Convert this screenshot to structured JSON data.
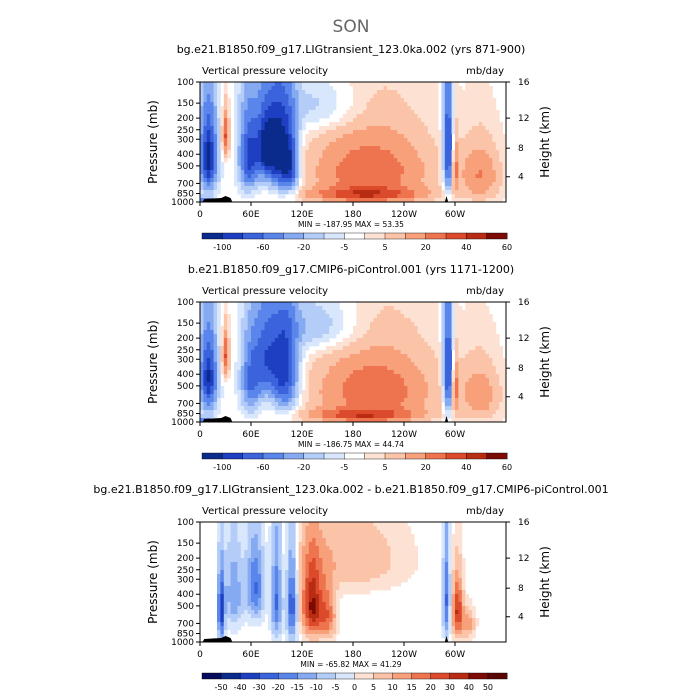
{
  "figure": {
    "title": "SON"
  },
  "common": {
    "left_text": "Vertical pressure velocity",
    "right_text": "mb/day",
    "ylabel_left": "Pressure (mb)",
    "ylabel_right": "Height (km)",
    "pressure_ticks": [
      "100",
      "150",
      "200",
      "250",
      "300",
      "400",
      "500",
      "700",
      "850",
      "1000"
    ],
    "height_ticks": [
      "16",
      "12",
      "8",
      "4"
    ],
    "lon_ticks": [
      "0",
      "60E",
      "120E",
      "180",
      "120W",
      "60W"
    ],
    "blue_ramp": [
      "#0a2a8c",
      "#1f3fc2",
      "#3a63dc",
      "#5a85ea",
      "#86aaf2",
      "#b4cdf8",
      "#d9e7fc"
    ],
    "red_ramp": [
      "#fde2d4",
      "#fbc4a8",
      "#f7a07a",
      "#ee7450",
      "#dc4a2c",
      "#b92c14",
      "#7d0a04"
    ]
  },
  "chart_data": [
    {
      "type": "heatmap",
      "title": "bg.e21.B1850.f09_g17.LIGtransient_123.0ka.002 (yrs 871-900)",
      "min_max": "MIN = -187.95   MAX = 53.35",
      "colorbar_labels": [
        "-100",
        "-60",
        "-20",
        "-5",
        "5",
        "20",
        "40",
        "60"
      ],
      "blobs": [
        {
          "lon": 10,
          "p": 430,
          "wl": 10,
          "wp": 330,
          "v": -1.0
        },
        {
          "lon": 30,
          "p": 280,
          "wl": 4,
          "wp": 130,
          "v": 0.6
        },
        {
          "lon": 58,
          "p": 420,
          "wl": 12,
          "wp": 330,
          "v": -0.8
        },
        {
          "lon": 78,
          "p": 350,
          "wl": 12,
          "wp": 250,
          "v": -0.9
        },
        {
          "lon": 95,
          "p": 400,
          "wl": 14,
          "wp": 350,
          "v": -0.95
        },
        {
          "lon": 108,
          "p": 500,
          "wl": 10,
          "wp": 300,
          "v": -0.6
        },
        {
          "lon": 140,
          "p": 160,
          "wl": 50,
          "wp": 90,
          "v": -0.25
        },
        {
          "lon": 200,
          "p": 550,
          "wl": 75,
          "wp": 400,
          "v": 0.55
        },
        {
          "lon": 195,
          "p": 870,
          "wl": 70,
          "wp": 120,
          "v": 0.5
        },
        {
          "lon": 292,
          "p": 400,
          "wl": 6,
          "wp": 400,
          "v": -0.95
        },
        {
          "lon": 300,
          "p": 500,
          "wl": 4,
          "wp": 300,
          "v": 0.4
        },
        {
          "lon": 330,
          "p": 600,
          "wl": 25,
          "wp": 350,
          "v": 0.4
        },
        {
          "lon": 5,
          "p": 980,
          "wl": 10,
          "wp": 80,
          "v": -0.5
        }
      ]
    },
    {
      "type": "heatmap",
      "title": "b.e21.B1850.f09_g17.CMIP6-piControl.001 (yrs 1171-1200)",
      "min_max": "MIN = -186.75   MAX = 44.74",
      "colorbar_labels": [
        "-100",
        "-60",
        "-20",
        "-5",
        "5",
        "20",
        "40",
        "60"
      ],
      "blobs": [
        {
          "lon": 10,
          "p": 430,
          "wl": 10,
          "wp": 330,
          "v": -0.9
        },
        {
          "lon": 30,
          "p": 280,
          "wl": 4,
          "wp": 130,
          "v": 0.6
        },
        {
          "lon": 60,
          "p": 450,
          "wl": 12,
          "wp": 330,
          "v": -0.6
        },
        {
          "lon": 78,
          "p": 300,
          "wl": 14,
          "wp": 260,
          "v": -0.6
        },
        {
          "lon": 100,
          "p": 400,
          "wl": 16,
          "wp": 360,
          "v": -0.85
        },
        {
          "lon": 140,
          "p": 160,
          "wl": 50,
          "wp": 90,
          "v": -0.3
        },
        {
          "lon": 205,
          "p": 550,
          "wl": 75,
          "wp": 400,
          "v": 0.55
        },
        {
          "lon": 190,
          "p": 880,
          "wl": 65,
          "wp": 110,
          "v": 0.5
        },
        {
          "lon": 292,
          "p": 400,
          "wl": 6,
          "wp": 400,
          "v": -0.95
        },
        {
          "lon": 300,
          "p": 500,
          "wl": 4,
          "wp": 300,
          "v": 0.4
        },
        {
          "lon": 330,
          "p": 600,
          "wl": 25,
          "wp": 350,
          "v": 0.35
        },
        {
          "lon": 5,
          "p": 980,
          "wl": 10,
          "wp": 80,
          "v": -0.5
        }
      ]
    },
    {
      "type": "heatmap",
      "title": "bg.e21.B1850.f09_g17.LIGtransient_123.0ka.002 - b.e21.B1850.f09_g17.CMIP6-piControl.001",
      "min_max": "MIN = -65.82   MAX = 41.29",
      "colorbar_labels": [
        "-50",
        "-40",
        "-30",
        "-20",
        "-15",
        "-10",
        "-5",
        "0",
        "5",
        "10",
        "15",
        "20",
        "30",
        "40",
        "50"
      ],
      "blobs": [
        {
          "lon": 25,
          "p": 550,
          "wl": 4,
          "wp": 350,
          "v": -0.85
        },
        {
          "lon": 40,
          "p": 400,
          "wl": 10,
          "wp": 300,
          "v": -0.4
        },
        {
          "lon": 65,
          "p": 350,
          "wl": 10,
          "wp": 250,
          "v": -0.6
        },
        {
          "lon": 90,
          "p": 450,
          "wl": 6,
          "wp": 400,
          "v": -0.6
        },
        {
          "lon": 108,
          "p": 500,
          "wl": 6,
          "wp": 400,
          "v": -0.7
        },
        {
          "lon": 132,
          "p": 500,
          "wl": 12,
          "wp": 350,
          "v": 0.9
        },
        {
          "lon": 150,
          "p": 600,
          "wl": 10,
          "wp": 300,
          "v": 0.5
        },
        {
          "lon": 180,
          "p": 200,
          "wl": 60,
          "wp": 150,
          "v": 0.25
        },
        {
          "lon": 290,
          "p": 450,
          "wl": 4,
          "wp": 400,
          "v": -0.6
        },
        {
          "lon": 303,
          "p": 550,
          "wl": 6,
          "wp": 300,
          "v": 0.75
        },
        {
          "lon": 315,
          "p": 700,
          "wl": 8,
          "wp": 200,
          "v": 0.35
        }
      ]
    }
  ]
}
